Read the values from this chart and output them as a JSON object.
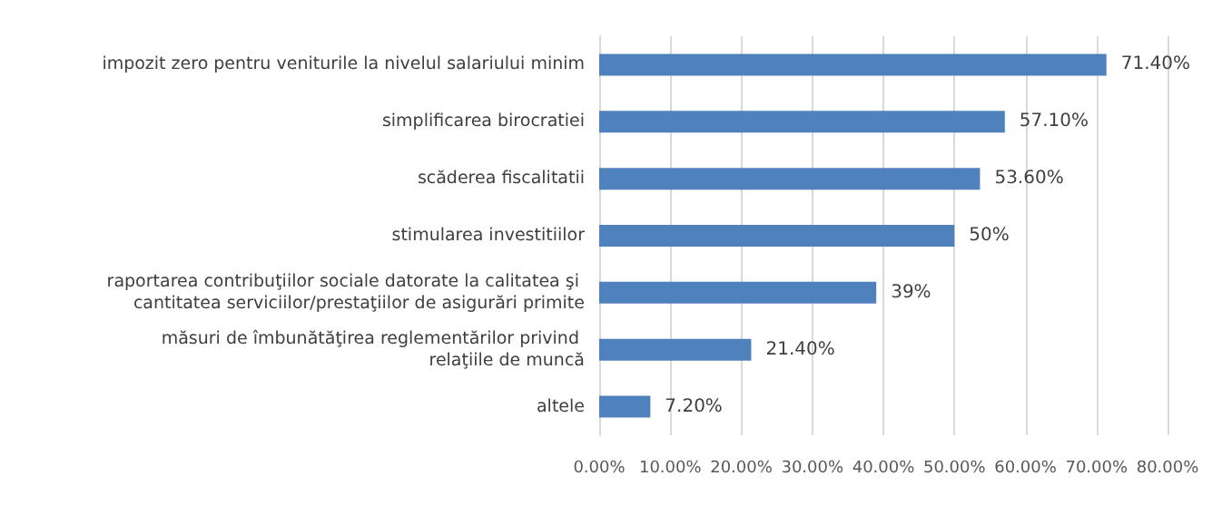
{
  "chart_data": {
    "type": "bar",
    "orientation": "horizontal",
    "categories": [
      "impozit zero pentru veniturile la nivelul salariului minim",
      "simplificarea birocratiei",
      "scăderea fiscalitatii",
      "stimularea investitiilor",
      "raportarea contribuţiilor sociale datorate la calitatea şi cantitatea serviciilor/prestaţiilor de asigurări primite",
      "măsuri de îmbunătăţirea reglementărilor privind relaţiile de muncă",
      "altele"
    ],
    "values": [
      71.4,
      57.1,
      53.6,
      50,
      39,
      21.4,
      7.2
    ],
    "value_labels": [
      "71.40%",
      "57.10%",
      "53.60%",
      "50%",
      "39%",
      "21.40%",
      "7.20%"
    ],
    "color": "#4f81bd",
    "xlim": [
      0,
      80
    ],
    "xticks": [
      {
        "value": 0,
        "label": "0.00%"
      },
      {
        "value": 10,
        "label": "10.00%"
      },
      {
        "value": 20,
        "label": "20.00%"
      },
      {
        "value": 30,
        "label": "30.00%"
      },
      {
        "value": 40,
        "label": "40.00%"
      },
      {
        "value": 50,
        "label": "50.00%"
      },
      {
        "value": 60,
        "label": "60.00%"
      },
      {
        "value": 70,
        "label": "70.00%"
      },
      {
        "value": 80,
        "label": "80.00%"
      }
    ],
    "grid": "x"
  }
}
